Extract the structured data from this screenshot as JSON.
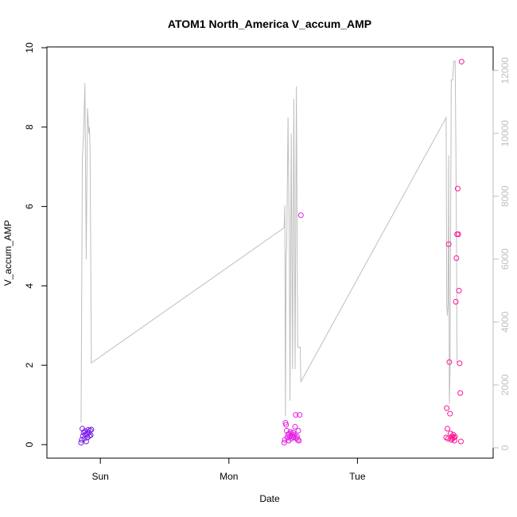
{
  "chart_data": {
    "type": "scatter",
    "title": "ATOM1 North_America V_accum_AMP",
    "xlabel": "Date",
    "ylabel": "V_accum_AMP",
    "x_ticks": [
      {
        "label": "Sun",
        "value": 0.74
      },
      {
        "label": "Mon",
        "value": 1.74
      },
      {
        "label": "Tue",
        "value": 2.74
      }
    ],
    "xlim": [
      0.38,
      3.74
    ],
    "ylim": [
      0,
      10
    ],
    "y_ticks": [
      0,
      2,
      4,
      6,
      8,
      10
    ],
    "y2lim": [
      0,
      12750
    ],
    "y2_ticks": [
      0,
      2000,
      4000,
      6000,
      8000,
      10000,
      12000
    ],
    "colors": {
      "line": "#bebebe",
      "sat_points": "#7b1fe8",
      "mon_points": "#e21ee2",
      "tue_points": "#ff1493",
      "frame": "#000000",
      "right_axis": "#bebebe"
    },
    "series": [
      {
        "axis": "right",
        "style": "line",
        "color": "#bebebe",
        "points": [
          [
            0.59,
            800
          ],
          [
            0.6,
            9200
          ],
          [
            0.61,
            10000
          ],
          [
            0.62,
            11600
          ],
          [
            0.63,
            6000
          ],
          [
            0.64,
            10800
          ],
          [
            0.65,
            10000
          ],
          [
            0.655,
            10200
          ],
          [
            0.66,
            9500
          ],
          [
            0.67,
            2700
          ],
          [
            2.17,
            7000
          ],
          [
            2.175,
            7700
          ],
          [
            2.18,
            1000
          ],
          [
            2.185,
            6000
          ],
          [
            2.19,
            6500
          ],
          [
            2.2,
            10500
          ],
          [
            2.21,
            6500
          ],
          [
            2.215,
            1500
          ],
          [
            2.225,
            10000
          ],
          [
            2.235,
            2500
          ],
          [
            2.245,
            11100
          ],
          [
            2.255,
            2500
          ],
          [
            2.265,
            11500
          ],
          [
            2.275,
            3200
          ],
          [
            2.285,
            3200
          ],
          [
            2.295,
            3200
          ],
          [
            2.3,
            2100
          ],
          [
            3.43,
            10500
          ],
          [
            3.435,
            4500
          ],
          [
            3.44,
            4200
          ],
          [
            3.445,
            4600
          ],
          [
            3.45,
            9300
          ],
          [
            3.455,
            1400
          ],
          [
            3.46,
            2400
          ],
          [
            3.47,
            11700
          ],
          [
            3.48,
            11700
          ],
          [
            3.49,
            12300
          ],
          [
            3.5,
            12300
          ],
          [
            3.505,
            10000
          ],
          [
            3.51,
            7000
          ],
          [
            3.515,
            2700
          ]
        ]
      },
      {
        "axis": "left",
        "style": "points",
        "color": "#7b1fe8",
        "points": [
          [
            0.59,
            0.05
          ],
          [
            0.595,
            0.12
          ],
          [
            0.6,
            0.4
          ],
          [
            0.605,
            0.22
          ],
          [
            0.61,
            0.3
          ],
          [
            0.615,
            0.15
          ],
          [
            0.62,
            0.34
          ],
          [
            0.625,
            0.25
          ],
          [
            0.63,
            0.08
          ],
          [
            0.635,
            0.28
          ],
          [
            0.64,
            0.18
          ],
          [
            0.645,
            0.37
          ],
          [
            0.65,
            0.3
          ],
          [
            0.655,
            0.22
          ],
          [
            0.66,
            0.36
          ],
          [
            0.665,
            0.24
          ],
          [
            0.67,
            0.38
          ]
        ]
      },
      {
        "axis": "left",
        "style": "points",
        "color": "#e21ee2",
        "points": [
          [
            2.17,
            0.05
          ],
          [
            2.175,
            0.12
          ],
          [
            2.18,
            0.55
          ],
          [
            2.185,
            0.5
          ],
          [
            2.19,
            0.35
          ],
          [
            2.195,
            0.18
          ],
          [
            2.2,
            0.25
          ],
          [
            2.205,
            0.1
          ],
          [
            2.21,
            0.28
          ],
          [
            2.215,
            0.2
          ],
          [
            2.22,
            0.32
          ],
          [
            2.225,
            0.15
          ],
          [
            2.23,
            0.26
          ],
          [
            2.235,
            0.2
          ],
          [
            2.24,
            0.3
          ],
          [
            2.245,
            0.18
          ],
          [
            2.25,
            0.24
          ],
          [
            2.255,
            0.45
          ],
          [
            2.26,
            0.75
          ],
          [
            2.265,
            0.16
          ],
          [
            2.27,
            0.2
          ],
          [
            2.275,
            0.12
          ],
          [
            2.28,
            0.35
          ],
          [
            2.285,
            0.1
          ],
          [
            2.29,
            0.75
          ],
          [
            2.3,
            5.78
          ]
        ]
      },
      {
        "axis": "left",
        "style": "points",
        "color": "#ff1493",
        "points": [
          [
            3.43,
            0.18
          ],
          [
            3.435,
            0.92
          ],
          [
            3.44,
            0.4
          ],
          [
            3.445,
            0.15
          ],
          [
            3.45,
            5.05
          ],
          [
            3.455,
            2.08
          ],
          [
            3.46,
            0.78
          ],
          [
            3.465,
            0.28
          ],
          [
            3.47,
            0.12
          ],
          [
            3.475,
            0.2
          ],
          [
            3.48,
            0.15
          ],
          [
            3.485,
            0.25
          ],
          [
            3.49,
            0.18
          ],
          [
            3.495,
            0.1
          ],
          [
            3.5,
            0.2
          ],
          [
            3.505,
            3.6
          ],
          [
            3.51,
            4.7
          ],
          [
            3.515,
            5.3
          ],
          [
            3.52,
            6.45
          ],
          [
            3.525,
            5.3
          ],
          [
            3.53,
            3.88
          ],
          [
            3.535,
            2.05
          ],
          [
            3.54,
            1.3
          ],
          [
            3.545,
            0.08
          ],
          [
            3.55,
            9.65
          ]
        ]
      }
    ]
  }
}
